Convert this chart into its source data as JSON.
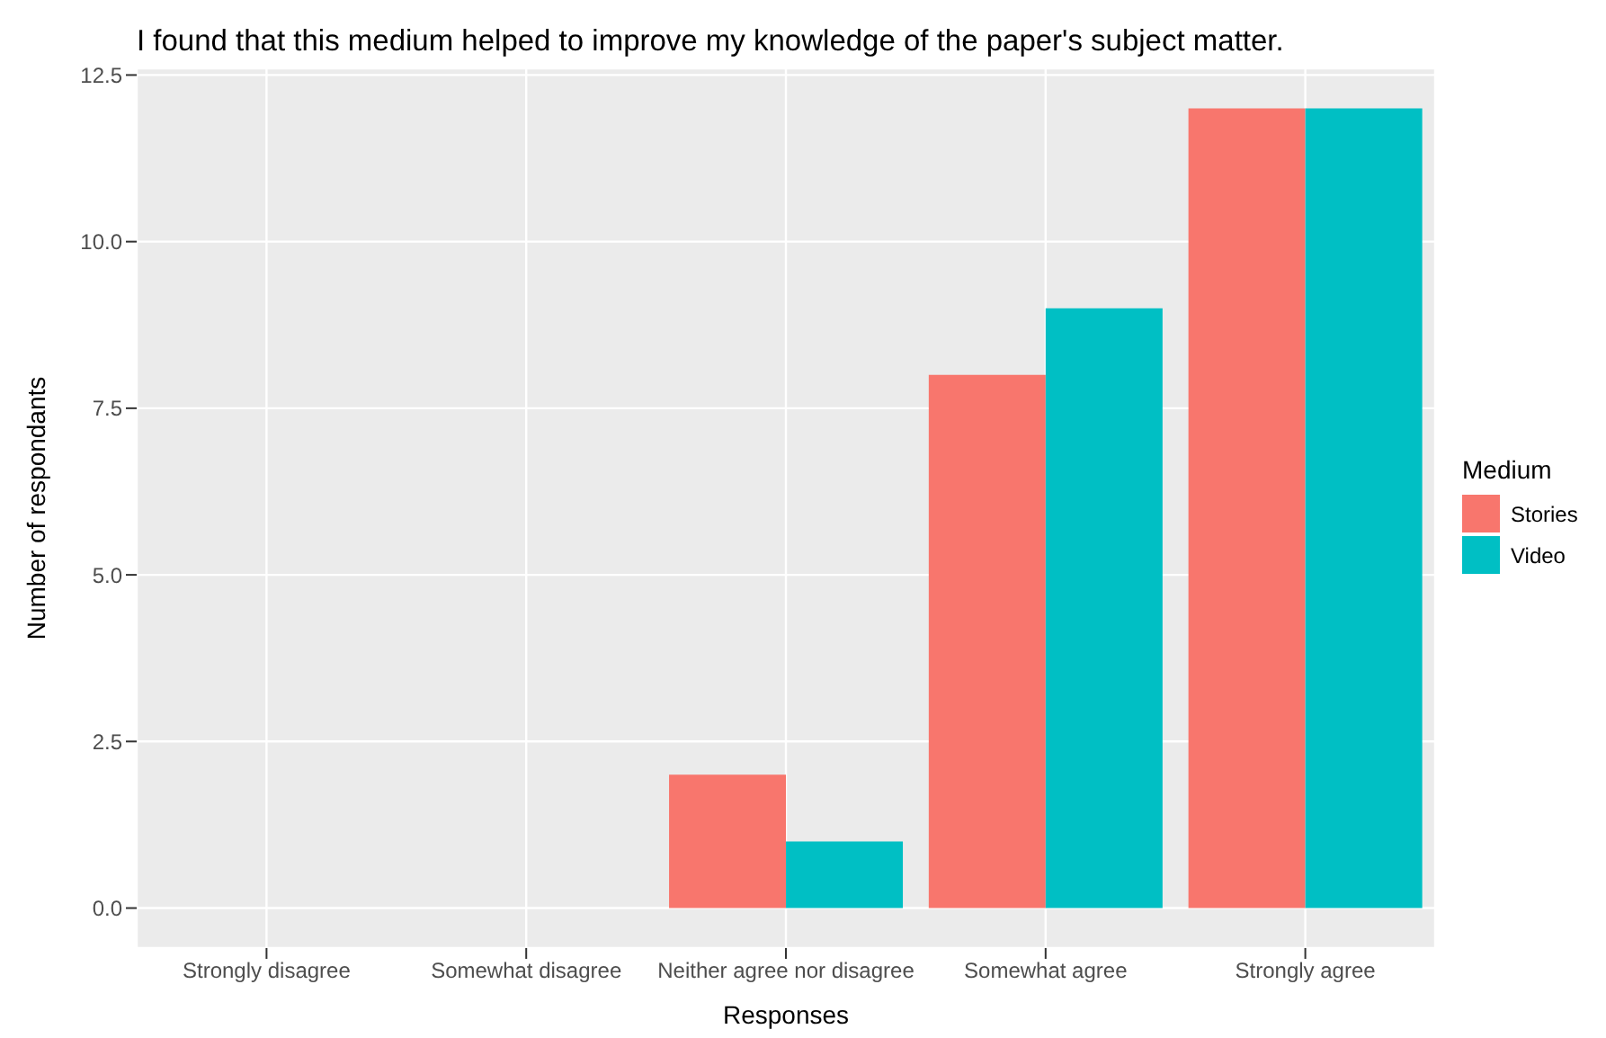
{
  "chart_data": {
    "type": "bar",
    "title": "I found that this medium helped to improve my knowledge of the paper's subject matter.",
    "xlabel": "Responses",
    "ylabel": "Number of respondants",
    "legend_title": "Medium",
    "categories": [
      "Strongly disagree",
      "Somewhat disagree",
      "Neither agree nor disagree",
      "Somewhat agree",
      "Strongly agree"
    ],
    "series": [
      {
        "name": "Stories",
        "color": "#f8766d",
        "values": [
          0,
          0,
          2,
          8,
          12
        ]
      },
      {
        "name": "Video",
        "color": "#00bfc4",
        "values": [
          0,
          0,
          1,
          9,
          12
        ]
      }
    ],
    "ylim": [
      -0.6,
      12.6
    ],
    "yticks": [
      {
        "value": 0,
        "label": "0.0"
      },
      {
        "value": 2.5,
        "label": "2.5"
      },
      {
        "value": 5,
        "label": "5.0"
      },
      {
        "value": 7.5,
        "label": "7.5"
      },
      {
        "value": 10,
        "label": "10.0"
      },
      {
        "value": 12.5,
        "label": "12.5"
      }
    ],
    "grid": true,
    "legend": "right"
  }
}
